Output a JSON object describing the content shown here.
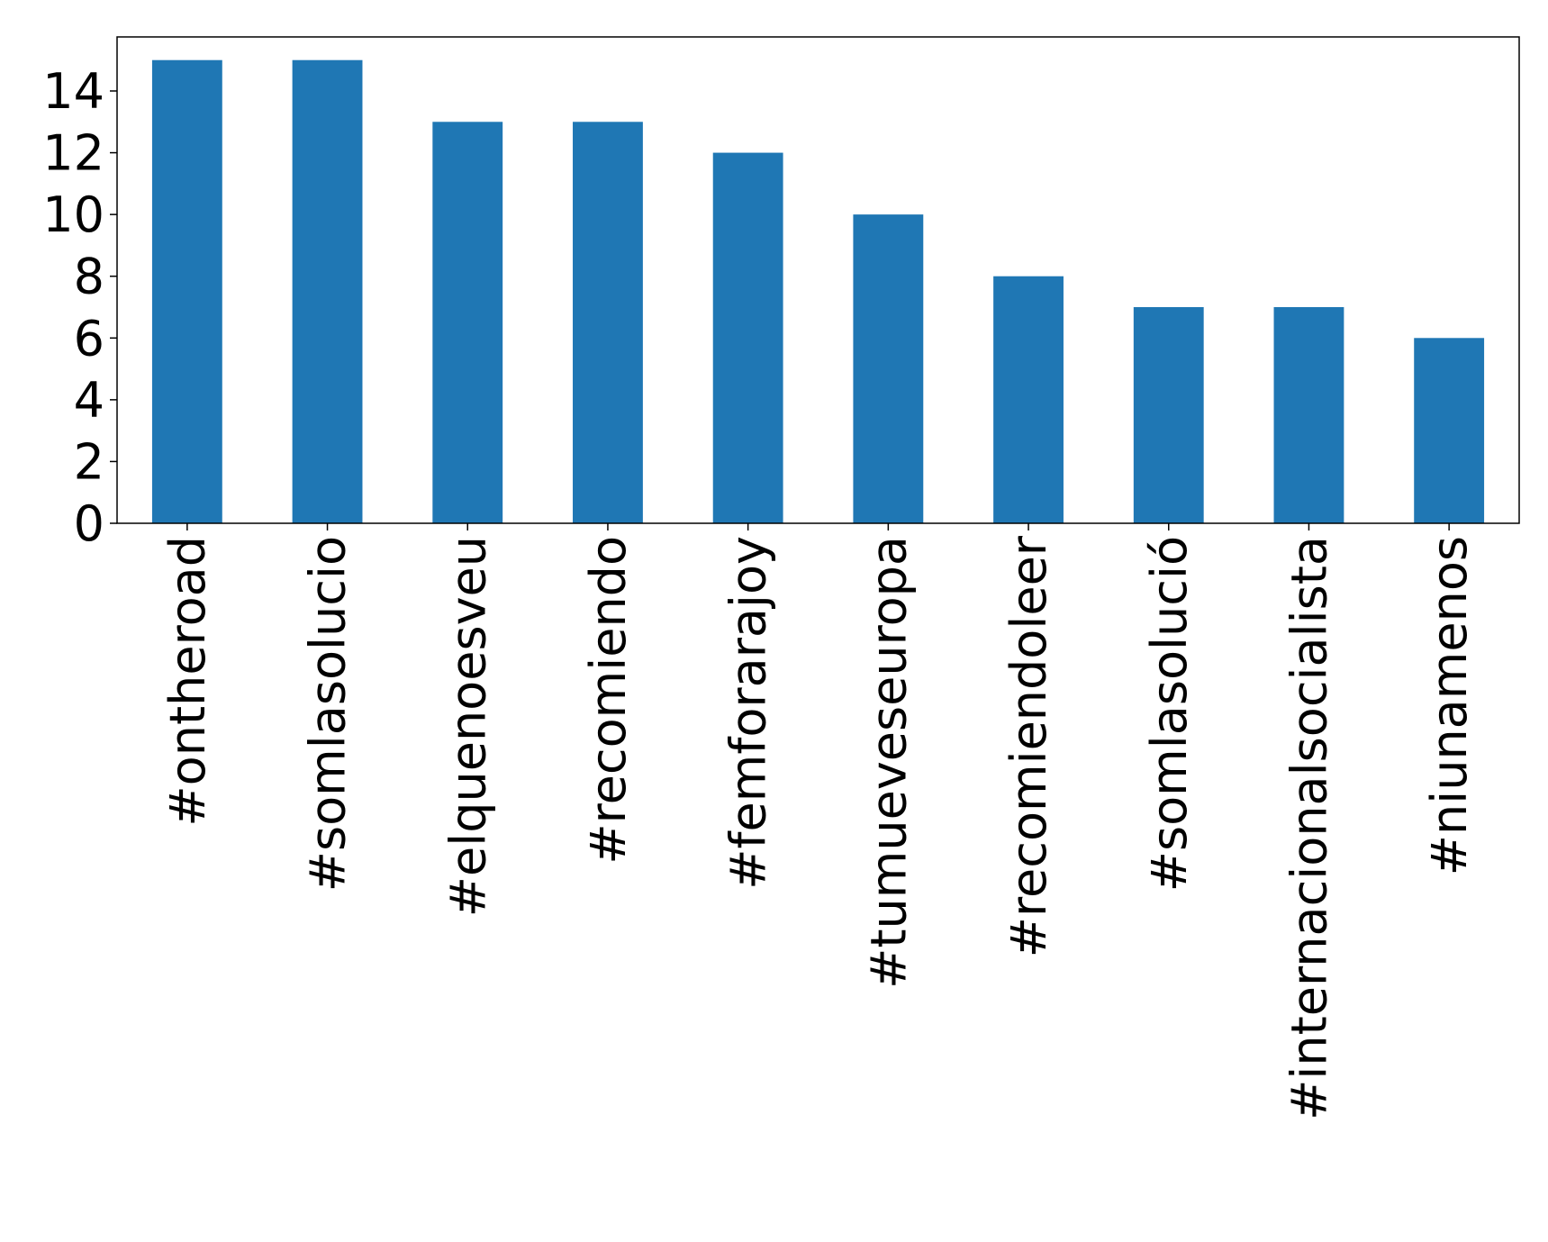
{
  "chart_data": {
    "type": "bar",
    "categories": [
      "#ontheroad",
      "#somlasolucio",
      "#elquenoesveu",
      "#recomiendo",
      "#femforarajoy",
      "#tumueveseuropa",
      "#recomiendoleer",
      "#somlasolució",
      "#internacionalsocialista",
      "#niunamenos"
    ],
    "values": [
      15,
      15,
      13,
      13,
      12,
      10,
      8,
      7,
      7,
      6
    ],
    "color": "#1f77b4",
    "ylim": [
      0,
      15.75
    ],
    "yticks": [
      0,
      2,
      4,
      6,
      8,
      10,
      12,
      14
    ],
    "grid": false
  }
}
